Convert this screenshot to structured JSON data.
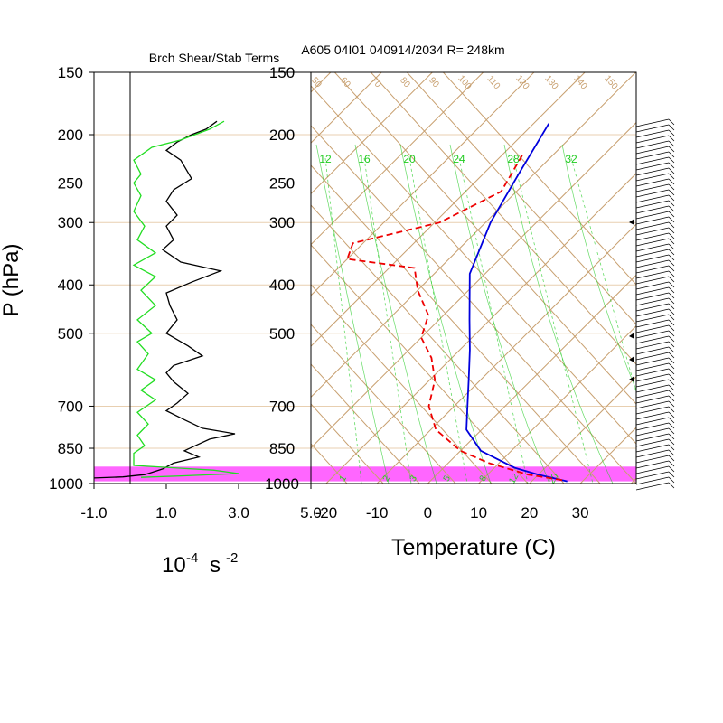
{
  "figure": {
    "left_title": "Brch Shear/Stab Terms",
    "right_title": "A605 04I01 040914/2034 R= 248km",
    "ylabel": "P (hPa)",
    "left_xlabel_base": "10",
    "left_xlabel_exp": "-4",
    "left_xlabel_unit": "s",
    "left_xlabel_unit_exp": "-2",
    "right_xlabel": "Temperature (C)"
  },
  "colors": {
    "isotherm": "#c8a070",
    "mixing_ratio": "#22cc22",
    "temperature": "#0000dd",
    "dewpoint": "#ee0000",
    "shear": "#000000",
    "stability": "#22dd22",
    "highlight": "#ff66ff"
  },
  "chart_data": [
    {
      "type": "line",
      "title": "Brch Shear/Stab Terms",
      "ylabel": "P (hPa)",
      "y_scale": "log",
      "ylim": [
        1000,
        150
      ],
      "y_ticks": [
        150,
        200,
        250,
        300,
        400,
        500,
        700,
        850,
        1000
      ],
      "y_tick_labels": [
        "150",
        "200",
        "250",
        "300",
        "400",
        "500",
        "700",
        "850",
        "1000"
      ],
      "xlim": [
        -1.0,
        5.0
      ],
      "x_ticks": [
        -1.0,
        1.0,
        3.0,
        5.0
      ],
      "x_tick_labels": [
        "-1.0",
        "1.0",
        "3.0",
        "5.0"
      ],
      "zero_line_x": 0.0,
      "grid": true,
      "highlight_band_p": [
        925,
        990
      ],
      "series": [
        {
          "color": "#000000",
          "points": [
            [
              2.4,
              188
            ],
            [
              2.1,
              195
            ],
            [
              1.7,
              200
            ],
            [
              1.3,
              207
            ],
            [
              1.0,
              215
            ],
            [
              1.4,
              225
            ],
            [
              1.7,
              245
            ],
            [
              1.2,
              258
            ],
            [
              1.0,
              272
            ],
            [
              1.3,
              290
            ],
            [
              1.0,
              305
            ],
            [
              1.2,
              325
            ],
            [
              0.9,
              340
            ],
            [
              1.4,
              360
            ],
            [
              2.5,
              375
            ],
            [
              1.7,
              395
            ],
            [
              1.0,
              415
            ],
            [
              1.1,
              440
            ],
            [
              1.3,
              470
            ],
            [
              1.0,
              500
            ],
            [
              1.6,
              530
            ],
            [
              2.0,
              555
            ],
            [
              1.2,
              580
            ],
            [
              1.0,
              600
            ],
            [
              1.2,
              625
            ],
            [
              1.6,
              660
            ],
            [
              1.3,
              690
            ],
            [
              1.0,
              715
            ],
            [
              1.5,
              745
            ],
            [
              2.0,
              775
            ],
            [
              2.9,
              795
            ],
            [
              2.2,
              815
            ],
            [
              1.8,
              840
            ],
            [
              1.5,
              860
            ],
            [
              1.9,
              885
            ],
            [
              1.2,
              910
            ],
            [
              0.9,
              935
            ],
            [
              0.6,
              950
            ],
            [
              0.4,
              960
            ],
            [
              -0.2,
              970
            ],
            [
              -1.0,
              975
            ]
          ]
        },
        {
          "color": "#22dd22",
          "points": [
            [
              2.6,
              188
            ],
            [
              2.2,
              195
            ],
            [
              1.4,
              205
            ],
            [
              0.6,
              212
            ],
            [
              0.1,
              225
            ],
            [
              0.3,
              240
            ],
            [
              0.1,
              250
            ],
            [
              0.3,
              265
            ],
            [
              0.1,
              285
            ],
            [
              0.4,
              305
            ],
            [
              0.2,
              325
            ],
            [
              0.7,
              345
            ],
            [
              0.1,
              365
            ],
            [
              0.7,
              385
            ],
            [
              0.3,
              410
            ],
            [
              0.7,
              440
            ],
            [
              0.2,
              470
            ],
            [
              0.6,
              500
            ],
            [
              0.2,
              520
            ],
            [
              0.5,
              550
            ],
            [
              0.2,
              590
            ],
            [
              0.7,
              620
            ],
            [
              0.3,
              650
            ],
            [
              0.7,
              680
            ],
            [
              0.2,
              720
            ],
            [
              0.5,
              760
            ],
            [
              0.2,
              800
            ],
            [
              0.4,
              840
            ],
            [
              0.1,
              870
            ],
            [
              0.1,
              920
            ],
            [
              1.2,
              930
            ],
            [
              2.3,
              940
            ],
            [
              3.0,
              955
            ],
            [
              1.5,
              965
            ],
            [
              0.3,
              972
            ]
          ]
        }
      ]
    },
    {
      "type": "line",
      "title": "A605 04I01 040914/2034 R= 248km",
      "xlabel": "Temperature (C)",
      "y_scale": "log",
      "ylim": [
        1000,
        150
      ],
      "y_ticks": [
        150,
        200,
        250,
        300,
        400,
        500,
        700,
        850,
        1000
      ],
      "y_tick_labels": [
        "150",
        "200",
        "250",
        "300",
        "400",
        "500",
        "700",
        "850",
        "1000"
      ],
      "xlim": [
        -23,
        41
      ],
      "x_ticks": [
        -20,
        -10,
        0,
        10,
        20,
        30
      ],
      "x_tick_labels": [
        "-20",
        "-10",
        "0",
        "10",
        "20",
        "30"
      ],
      "isotherm_labels": [
        "50",
        "60",
        "70",
        "80",
        "90",
        "100",
        "110",
        "120",
        "130",
        "140",
        "150"
      ],
      "mixing_ratio_labels_top": [
        "12",
        "16",
        "20",
        "24",
        "28",
        "32"
      ],
      "mixing_ratio_labels_bottom": [
        "1",
        "2",
        "3",
        "5",
        "8",
        "12",
        "20"
      ],
      "highlight_band_p": [
        925,
        990
      ],
      "series": [
        {
          "name_hidden": true,
          "style": "solid",
          "color": "#0000dd",
          "points": [
            [
              -47,
              190
            ],
            [
              -43,
              240
            ],
            [
              -39,
              300
            ],
            [
              -33,
              380
            ],
            [
              -24,
              470
            ],
            [
              -18,
              540
            ],
            [
              -13,
              610
            ],
            [
              -8,
              690
            ],
            [
              -3,
              780
            ],
            [
              4,
              860
            ],
            [
              14,
              930
            ],
            [
              20,
              960
            ],
            [
              27,
              990
            ]
          ]
        },
        {
          "name_hidden": true,
          "style": "dashed",
          "color": "#ee0000",
          "points": [
            [
              -46,
              220
            ],
            [
              -43,
              260
            ],
            [
              -49,
              300
            ],
            [
              -62,
              330
            ],
            [
              -60,
              355
            ],
            [
              -45,
              370
            ],
            [
              -40,
              410
            ],
            [
              -33,
              460
            ],
            [
              -30,
              510
            ],
            [
              -24,
              560
            ],
            [
              -19,
              620
            ],
            [
              -15,
              700
            ],
            [
              -9,
              780
            ],
            [
              0,
              860
            ],
            [
              8,
              910
            ],
            [
              18,
              960
            ],
            [
              26,
              985
            ]
          ]
        }
      ],
      "wind_barbs_side": "right"
    }
  ]
}
